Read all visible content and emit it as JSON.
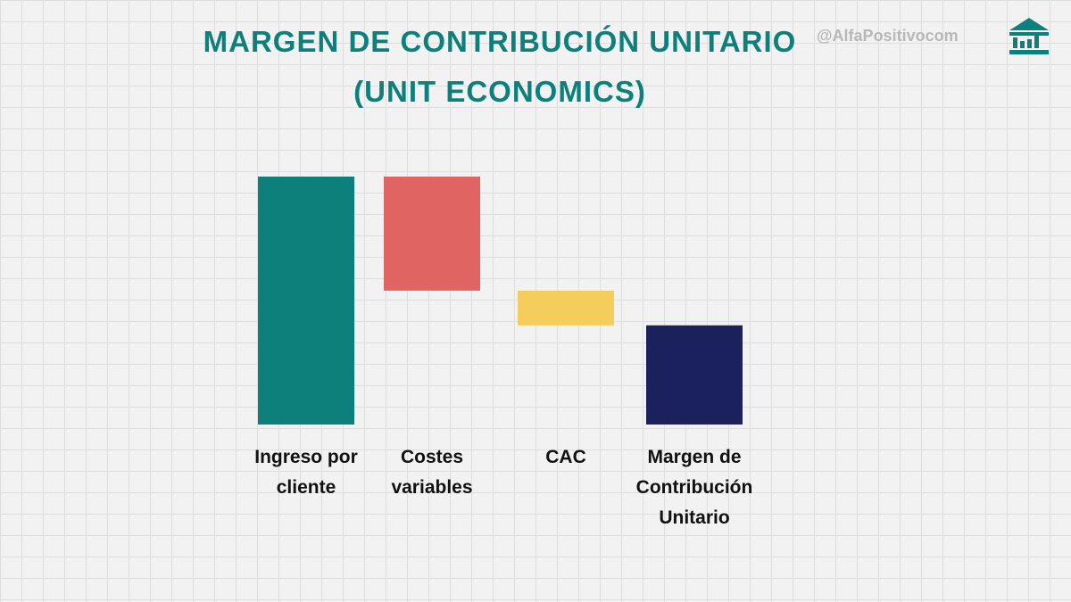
{
  "chart_data": {
    "type": "waterfall",
    "title": "MARGEN DE CONTRIBUCIÓN UNITARIO",
    "subtitle": "(UNIT ECONOMICS)",
    "annotations": [
      "@AlfaPositivocom"
    ],
    "categories": [
      "Ingreso por cliente",
      "Costes variables",
      "CAC",
      "Margen de Contribución Unitario"
    ],
    "values": [
      100,
      -46,
      -14,
      40
    ],
    "colors": [
      "#0e807c",
      "#e06461",
      "#f4cd5c",
      "#1b215c"
    ]
  }
}
